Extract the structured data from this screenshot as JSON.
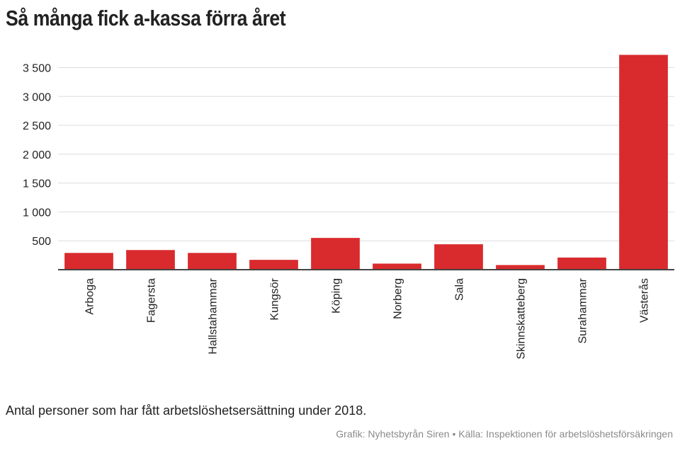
{
  "title": "Så många fick a-kassa förra året",
  "caption": "Antal personer som har fått arbetslöshetsersättning under 2018.",
  "credit": "Grafik: Nyhetsbyrån Siren • Källa: Inspektionen för arbetslöshetsförsäkringen",
  "chart_data": {
    "type": "bar",
    "categories": [
      "Arboga",
      "Fagersta",
      "Hallstahammar",
      "Kungsör",
      "Köping",
      "Norberg",
      "Sala",
      "Skinnskatteberg",
      "Surahammar",
      "Västerås"
    ],
    "values": [
      290,
      340,
      290,
      170,
      550,
      105,
      440,
      80,
      210,
      3720
    ],
    "yticks": [
      500,
      1000,
      1500,
      2000,
      2500,
      3000,
      3500
    ],
    "ytick_labels": [
      "500",
      "1 000",
      "1 500",
      "2 000",
      "2 500",
      "3 000",
      "3 500"
    ],
    "ylim": [
      0,
      3800
    ],
    "grid": true,
    "bar_color": "#d92a2d",
    "grid_color": "#dddddd",
    "axis_color": "#444444"
  }
}
